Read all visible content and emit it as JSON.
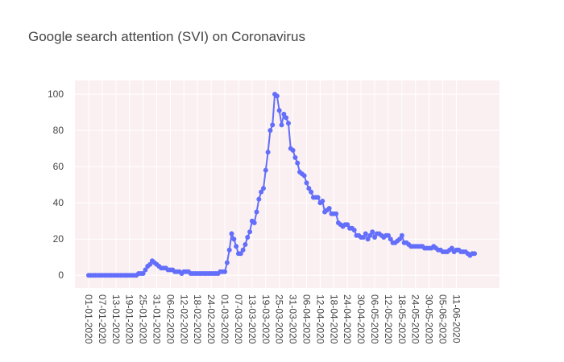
{
  "chart_data": {
    "type": "line",
    "title": "Google search attention (SVI) on Coronavirus",
    "categories": [
      "01-01-2020",
      null,
      null,
      null,
      null,
      null,
      "07-01-2020",
      null,
      null,
      null,
      null,
      null,
      "13-01-2020",
      null,
      null,
      null,
      null,
      null,
      "19-01-2020",
      null,
      null,
      null,
      null,
      null,
      "25-01-2020",
      null,
      null,
      null,
      null,
      null,
      "31-01-2020",
      null,
      null,
      null,
      null,
      null,
      "06-02-2020",
      null,
      null,
      null,
      null,
      null,
      "12-02-2020",
      null,
      null,
      null,
      null,
      null,
      "18-02-2020",
      null,
      null,
      null,
      null,
      null,
      "24-02-2020",
      null,
      null,
      null,
      null,
      null,
      "01-03-2020",
      null,
      null,
      null,
      null,
      null,
      "07-03-2020",
      null,
      null,
      null,
      null,
      null,
      "13-03-2020",
      null,
      null,
      null,
      null,
      null,
      "19-03-2020",
      null,
      null,
      null,
      null,
      null,
      "25-03-2020",
      null,
      null,
      null,
      null,
      null,
      "31-03-2020",
      null,
      null,
      null,
      null,
      null,
      "06-04-2020",
      null,
      null,
      null,
      null,
      null,
      "12-04-2020",
      null,
      null,
      null,
      null,
      null,
      "18-04-2020",
      null,
      null,
      null,
      null,
      null,
      "24-04-2020",
      null,
      null,
      null,
      null,
      null,
      "30-04-2020",
      null,
      null,
      null,
      null,
      null,
      "06-05-2020",
      null,
      null,
      null,
      null,
      null,
      "12-05-2020",
      null,
      null,
      null,
      null,
      null,
      "18-05-2020",
      null,
      null,
      null,
      null,
      null,
      "24-05-2020",
      null,
      null,
      null,
      null,
      null,
      "30-05-2020",
      null,
      null,
      null,
      null,
      null,
      "05-06-2020",
      null,
      null,
      null,
      null,
      null,
      "11-06-2020",
      null,
      null,
      null,
      null,
      null,
      null,
      null,
      null
    ],
    "series": [
      {
        "color": "#636efa",
        "values": [
          0,
          0,
          0,
          0,
          0,
          0,
          0,
          0,
          0,
          0,
          0,
          0,
          0,
          0,
          0,
          0,
          0,
          0,
          0,
          0,
          0,
          0,
          1,
          1,
          1,
          3,
          5,
          6,
          8,
          7,
          6,
          5,
          4,
          4,
          4,
          3,
          3,
          3,
          2,
          2,
          2,
          1,
          2,
          2,
          2,
          1,
          1,
          1,
          1,
          1,
          1,
          1,
          1,
          1,
          1,
          1,
          1,
          1,
          2,
          2,
          2,
          7,
          14,
          23,
          20,
          16,
          12,
          12,
          14,
          17,
          21,
          24,
          30,
          29,
          35,
          42,
          46,
          48,
          58,
          68,
          80,
          83,
          100,
          99,
          91,
          83,
          89,
          87,
          84,
          70,
          69,
          65,
          62,
          57,
          56,
          55,
          51,
          48,
          46,
          43,
          43,
          43,
          40,
          41,
          35,
          36,
          37,
          34,
          34,
          34,
          29,
          28,
          27,
          28,
          28,
          26,
          26,
          25,
          22,
          22,
          21,
          21,
          23,
          20,
          22,
          24,
          21,
          23,
          23,
          22,
          21,
          22,
          22,
          20,
          18,
          18,
          19,
          20,
          22,
          18,
          18,
          17,
          16,
          16,
          16,
          16,
          16,
          16,
          15,
          15,
          15,
          15,
          16,
          15,
          14,
          14,
          13,
          13,
          13,
          14,
          15,
          13,
          14,
          14,
          13,
          13,
          13,
          12,
          11,
          12,
          12
        ]
      }
    ],
    "ylim": [
      -7,
      107.6
    ],
    "yticks": [
      0,
      20,
      40,
      60,
      80,
      100
    ],
    "grid": true
  }
}
